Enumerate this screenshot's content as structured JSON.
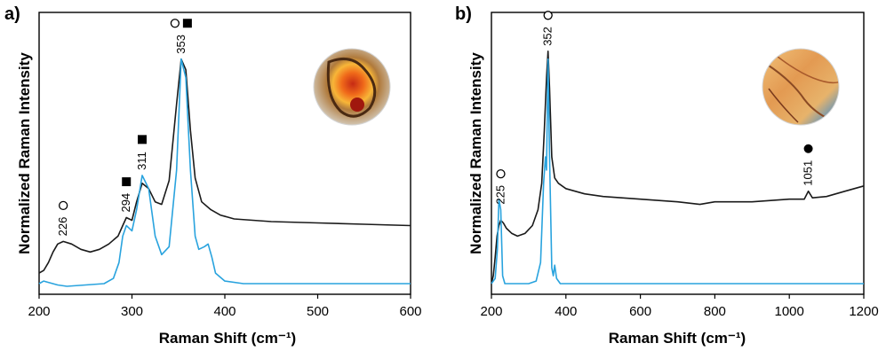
{
  "chart_data": [
    {
      "type": "line",
      "panel_label": "a)",
      "xlabel": "Raman Shift (cm⁻¹)",
      "ylabel": "Normalized Raman Intensity",
      "xlim": [
        200,
        600
      ],
      "ylim": [
        0,
        1
      ],
      "x_ticks": [
        "200",
        "300",
        "400",
        "500",
        "600"
      ],
      "y_ticks_shown": false,
      "series": [
        {
          "color": "#1a1a1a",
          "x": [
            200,
            205,
            210,
            215,
            220,
            226,
            235,
            245,
            255,
            265,
            275,
            285,
            290,
            294,
            300,
            305,
            311,
            318,
            325,
            332,
            340,
            348,
            353,
            358,
            363,
            368,
            375,
            385,
            395,
            410,
            450,
            500,
            550,
            600
          ],
          "y": [
            0.06,
            0.07,
            0.1,
            0.14,
            0.17,
            0.18,
            0.17,
            0.15,
            0.14,
            0.15,
            0.17,
            0.2,
            0.24,
            0.27,
            0.26,
            0.33,
            0.4,
            0.38,
            0.33,
            0.32,
            0.41,
            0.7,
            0.87,
            0.83,
            0.6,
            0.42,
            0.33,
            0.3,
            0.28,
            0.265,
            0.255,
            0.25,
            0.245,
            0.24
          ]
        },
        {
          "color": "#29a3de",
          "x": [
            200,
            205,
            210,
            220,
            230,
            250,
            270,
            280,
            286,
            290,
            294,
            300,
            305,
            311,
            318,
            325,
            332,
            340,
            348,
            353,
            358,
            363,
            368,
            372,
            378,
            382,
            386,
            390,
            400,
            420,
            450,
            500,
            550,
            600
          ],
          "y": [
            0.02,
            0.03,
            0.025,
            0.015,
            0.01,
            0.015,
            0.02,
            0.04,
            0.1,
            0.2,
            0.24,
            0.22,
            0.3,
            0.43,
            0.38,
            0.2,
            0.13,
            0.16,
            0.45,
            0.87,
            0.8,
            0.45,
            0.2,
            0.15,
            0.16,
            0.17,
            0.12,
            0.06,
            0.03,
            0.02,
            0.02,
            0.02,
            0.02,
            0.02
          ]
        }
      ],
      "annotations": [
        {
          "label": "226",
          "x": 226,
          "marker": "open-circle"
        },
        {
          "label": "294",
          "x": 294,
          "marker": "filled-square"
        },
        {
          "label": "311",
          "x": 311,
          "marker": "filled-square"
        },
        {
          "label": "353",
          "x": 353,
          "marker": "open-circle+filled-square"
        }
      ],
      "inset_image": "paint-sample-red-orange-detail"
    },
    {
      "type": "line",
      "panel_label": "b)",
      "xlabel": "Raman Shift (cm⁻¹)",
      "ylabel": "Normalized Raman Intensity",
      "xlim": [
        200,
        1200
      ],
      "ylim": [
        0,
        1
      ],
      "x_ticks": [
        "200",
        "400",
        "600",
        "800",
        "1000",
        "1200"
      ],
      "y_ticks_shown": false,
      "series": [
        {
          "color": "#1a1a1a",
          "x": [
            200,
            205,
            210,
            215,
            220,
            225,
            232,
            240,
            255,
            270,
            290,
            310,
            325,
            335,
            342,
            348,
            352,
            356,
            362,
            370,
            380,
            400,
            450,
            500,
            600,
            700,
            760,
            800,
            900,
            1000,
            1040,
            1051,
            1062,
            1100,
            1150,
            1200
          ],
          "y": [
            0.02,
            0.05,
            0.12,
            0.2,
            0.24,
            0.26,
            0.25,
            0.23,
            0.21,
            0.2,
            0.21,
            0.24,
            0.3,
            0.4,
            0.6,
            0.8,
            0.9,
            0.76,
            0.5,
            0.42,
            0.4,
            0.38,
            0.36,
            0.35,
            0.34,
            0.33,
            0.32,
            0.33,
            0.33,
            0.34,
            0.34,
            0.37,
            0.345,
            0.35,
            0.37,
            0.39
          ]
        },
        {
          "color": "#29a3de",
          "x": [
            200,
            210,
            216,
            220,
            225,
            230,
            236,
            250,
            300,
            320,
            332,
            340,
            345,
            348,
            352,
            356,
            362,
            366,
            370,
            375,
            385,
            400,
            500,
            600,
            800,
            1000,
            1200
          ],
          "y": [
            0.02,
            0.04,
            0.15,
            0.34,
            0.3,
            0.05,
            0.02,
            0.02,
            0.02,
            0.03,
            0.1,
            0.4,
            0.5,
            0.45,
            0.87,
            0.5,
            0.08,
            0.05,
            0.09,
            0.04,
            0.02,
            0.02,
            0.02,
            0.02,
            0.02,
            0.02,
            0.02
          ]
        }
      ],
      "annotations": [
        {
          "label": "225",
          "x": 225,
          "marker": "open-circle"
        },
        {
          "label": "352",
          "x": 352,
          "marker": "open-circle"
        },
        {
          "label": "1051",
          "x": 1051,
          "marker": "filled-circle"
        }
      ],
      "inset_image": "paint-sample-yellow-detail"
    }
  ]
}
